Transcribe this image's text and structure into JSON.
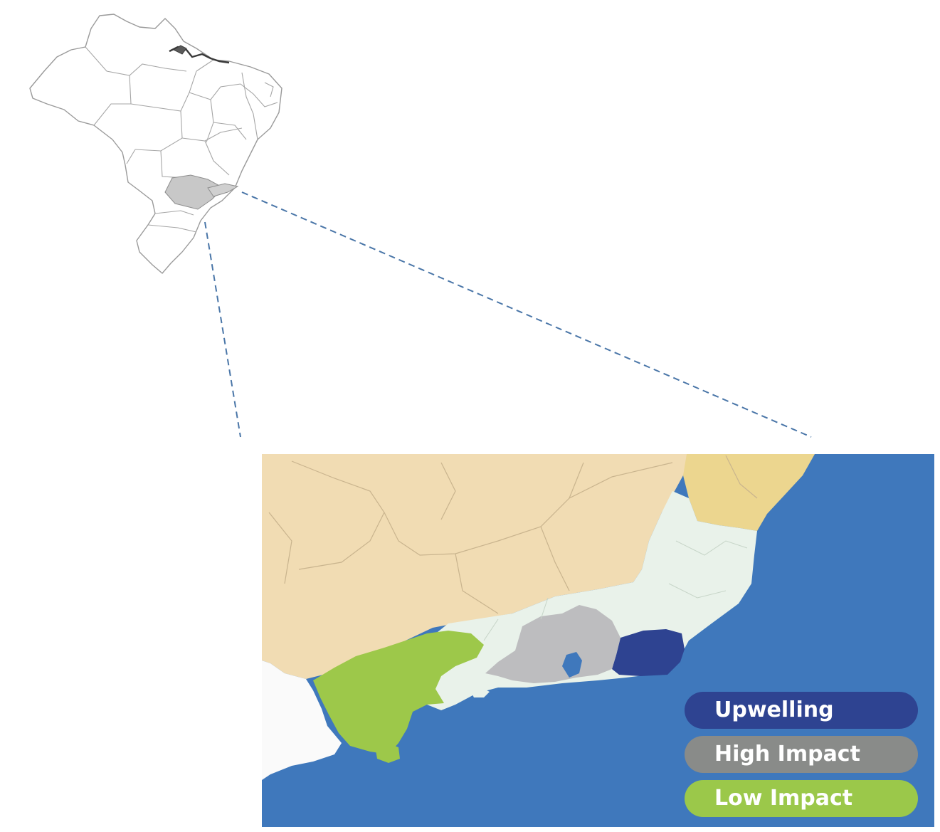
{
  "legend": {
    "items": [
      {
        "key": "upwelling",
        "label": "Upwelling",
        "color": "#2e4391"
      },
      {
        "key": "high_impact",
        "label": "High Impact",
        "color": "#898b89"
      },
      {
        "key": "low_impact",
        "label": "Low Impact",
        "color": "#9bc84a"
      }
    ]
  },
  "colors": {
    "ocean": "#3f78bc",
    "neighbor_state_land": "#f1dcb3",
    "neighbor_state_land_northeast": "#ecd68f",
    "study_state_land": "#e9f2ea",
    "outside_land": "#fafafa",
    "highlighted_state_inset": "#c8c8c8",
    "connector_line": "#4a76a8",
    "upwelling_region": "#2e4391",
    "high_impact_region": "#bdbdbf",
    "low_impact_region": "#9dc84a"
  }
}
